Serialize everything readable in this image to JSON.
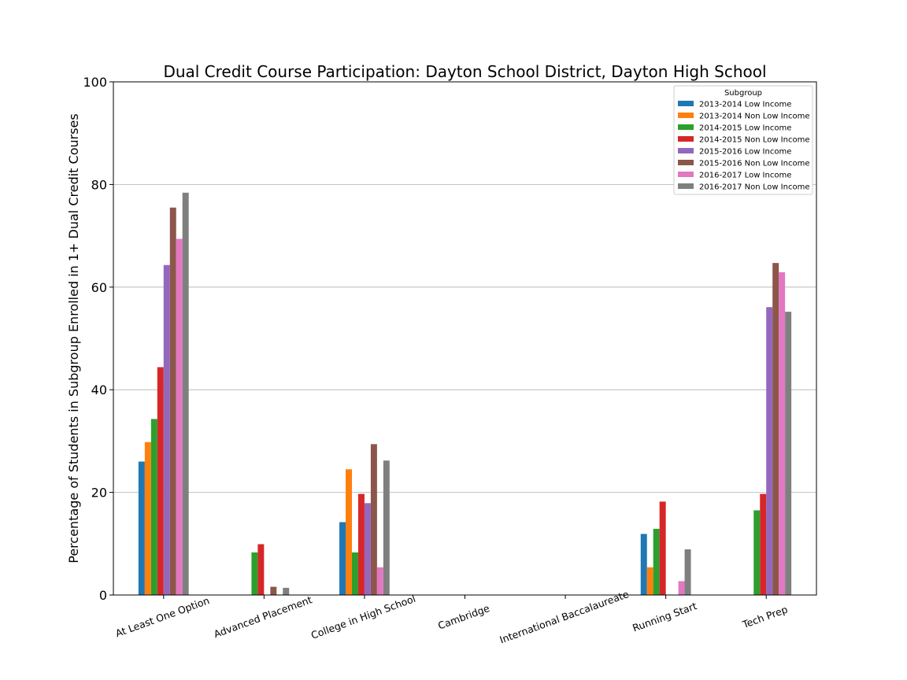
{
  "chart_data": {
    "type": "bar",
    "title": "Dual Credit Course Participation: Dayton School District, Dayton High School",
    "xlabel": "",
    "ylabel": "Percentage of Students in Subgroup Enrolled in 1+ Dual Credit Courses",
    "ylim": [
      0,
      100
    ],
    "yticks": [
      0,
      20,
      40,
      60,
      80,
      100
    ],
    "grid": "horizontal",
    "legend": {
      "title": "Subgroup",
      "placement": "top-right"
    },
    "categories": [
      "At Least One Option",
      "Advanced Placement",
      "College in High School",
      "Cambridge",
      "International Baccalaureate",
      "Running Start",
      "Tech Prep"
    ],
    "series": [
      {
        "name": "2013-2014 Low Income",
        "color": "#1f77b4",
        "values": [
          26.0,
          0,
          14.2,
          0,
          0,
          11.9,
          0
        ]
      },
      {
        "name": "2013-2014 Non Low Income",
        "color": "#ff7f0e",
        "values": [
          29.8,
          0,
          24.5,
          0,
          0,
          5.4,
          0
        ]
      },
      {
        "name": "2014-2015 Low Income",
        "color": "#2ca02c",
        "values": [
          34.3,
          8.3,
          8.3,
          0,
          0,
          12.9,
          16.5
        ]
      },
      {
        "name": "2014-2015 Non Low Income",
        "color": "#d62728",
        "values": [
          44.4,
          9.9,
          19.7,
          0,
          0,
          18.2,
          19.7
        ]
      },
      {
        "name": "2015-2016 Low Income",
        "color": "#9467bd",
        "values": [
          64.3,
          0,
          17.9,
          0,
          0,
          0,
          56.1
        ]
      },
      {
        "name": "2015-2016 Non Low Income",
        "color": "#8c564b",
        "values": [
          75.5,
          1.6,
          29.4,
          0,
          0,
          0,
          64.7
        ]
      },
      {
        "name": "2016-2017 Low Income",
        "color": "#e377c2",
        "values": [
          69.4,
          0,
          5.4,
          0,
          0,
          2.7,
          62.9
        ]
      },
      {
        "name": "2016-2017 Non Low Income",
        "color": "#7f7f7f",
        "values": [
          78.4,
          1.4,
          26.2,
          0,
          0,
          8.9,
          55.2
        ]
      }
    ]
  }
}
